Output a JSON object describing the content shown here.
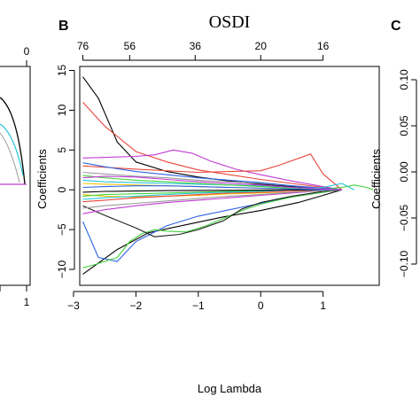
{
  "panels": {
    "B": {
      "label": "B"
    },
    "C": {
      "label": "C"
    }
  },
  "left_fragment": {
    "top_tick_label": "0",
    "bottom_tick_label": "1"
  },
  "chart_data": [
    {
      "panel": "B",
      "type": "line",
      "title": "OSDI",
      "xlabel": "Log Lambda",
      "ylabel": "Coefficients",
      "xlim": [
        -2.9,
        1.9
      ],
      "ylim": [
        -12,
        15.5
      ],
      "x_ticks": [
        -3,
        -2,
        -1,
        0,
        1
      ],
      "x_tick_labels": [
        "−3",
        "−2",
        "−1",
        "0",
        "1"
      ],
      "y_ticks": [
        -10,
        -5,
        0,
        5,
        10,
        15
      ],
      "y_tick_labels": [
        "−10",
        "−5",
        "0",
        "5",
        "10",
        "15"
      ],
      "top_axis": {
        "label": "OSDI",
        "tick_positions": [
          -2.85,
          -2.1,
          -1.05,
          0.0,
          1.0
        ],
        "tick_labels": [
          "76",
          "56",
          "36",
          "20",
          "16"
        ]
      },
      "series": [
        {
          "color": "#000000",
          "x": [
            -2.85,
            -2.6,
            -2.3,
            -2.0,
            -1.5,
            -1.0,
            -0.5,
            0.0,
            0.5,
            1.0,
            1.3
          ],
          "y": [
            14.2,
            11.5,
            6.0,
            3.5,
            2.3,
            1.6,
            1.1,
            0.7,
            0.4,
            0.1,
            0.0
          ]
        },
        {
          "color": "#e8463c",
          "x": [
            -2.85,
            -2.5,
            -2.0,
            -1.5,
            -1.0,
            -0.5,
            0.0,
            0.5,
            1.0,
            1.3
          ],
          "y": [
            11.0,
            8.0,
            4.8,
            3.5,
            2.5,
            1.9,
            1.3,
            0.8,
            0.3,
            0.0
          ]
        },
        {
          "color": "#c23bd4",
          "x": [
            -2.85,
            -2.4,
            -2.0,
            -1.7,
            -1.4,
            -1.1,
            -0.8,
            -0.4,
            0.0,
            0.5,
            1.0,
            1.3
          ],
          "y": [
            4.0,
            4.1,
            4.2,
            4.4,
            5.0,
            4.6,
            3.6,
            2.6,
            1.9,
            1.1,
            0.4,
            0.0
          ]
        },
        {
          "color": "#e8463c",
          "x": [
            -2.85,
            -2.0,
            -1.0,
            0.0,
            0.3,
            0.8,
            1.0,
            1.3
          ],
          "y": [
            3.0,
            2.6,
            2.2,
            2.4,
            3.1,
            4.5,
            2.0,
            0.0
          ]
        },
        {
          "color": "#000000",
          "x": [
            -2.85,
            -2.3,
            -1.8,
            -1.2,
            -0.6,
            0.0,
            0.6,
            1.0,
            1.3
          ],
          "y": [
            -10.6,
            -7.5,
            -5.4,
            -4.4,
            -3.4,
            -2.6,
            -1.6,
            -0.7,
            0.0
          ]
        },
        {
          "color": "#2d63e3",
          "x": [
            -2.85,
            -2.6,
            -2.3,
            -2.0,
            -1.5,
            -1.0,
            -0.5,
            0.0,
            0.5,
            1.0,
            1.3
          ],
          "y": [
            -4.0,
            -8.5,
            -9.0,
            -6.5,
            -4.5,
            -3.3,
            -2.5,
            -1.7,
            -0.9,
            -0.3,
            0.0
          ]
        },
        {
          "color": "#44d13c",
          "x": [
            -2.85,
            -2.7,
            -2.5,
            -2.3,
            -2.1,
            -1.9,
            -1.7,
            -1.5,
            -1.2,
            -0.9,
            -0.6,
            -0.3,
            0.0,
            0.5,
            1.0,
            1.3
          ],
          "y": [
            -9.8,
            -9.5,
            -9.0,
            -8.5,
            -6.5,
            -5.5,
            -5.0,
            -5.2,
            -5.3,
            -4.6,
            -3.6,
            -2.6,
            -1.8,
            -0.9,
            -0.3,
            0.0
          ]
        },
        {
          "color": "#1f1f1f",
          "x": [
            -2.85,
            -2.5,
            -2.0,
            -1.7,
            -1.3,
            -1.0,
            -0.6,
            -0.3,
            0.0,
            0.5,
            1.0,
            1.3
          ],
          "y": [
            -2.0,
            -3.2,
            -4.8,
            -5.9,
            -5.6,
            -5.0,
            -3.9,
            -2.4,
            -1.6,
            -0.8,
            -0.2,
            0.0
          ]
        },
        {
          "color": "#27c3d8",
          "x": [
            -2.85,
            -2.5,
            -2.0,
            -1.5,
            -1.0,
            -0.5,
            0.0,
            0.5,
            1.0,
            1.3
          ],
          "y": [
            1.2,
            1.0,
            0.9,
            0.8,
            0.7,
            0.6,
            0.5,
            0.3,
            0.1,
            0.0
          ]
        },
        {
          "color": "#f2c200",
          "x": [
            -2.85,
            -2.5,
            -2.0,
            -1.5,
            -1.0,
            -0.5,
            0.0,
            0.5,
            1.0,
            1.3
          ],
          "y": [
            -0.6,
            -0.8,
            -0.9,
            -0.8,
            -0.7,
            -0.5,
            -0.4,
            -0.2,
            -0.1,
            0.0
          ]
        },
        {
          "color": "#9a9a9a",
          "x": [
            -2.85,
            -2.5,
            -2.0,
            -1.5,
            -1.0,
            -0.5,
            0.0,
            0.5,
            1.0,
            1.3
          ],
          "y": [
            2.2,
            2.0,
            1.7,
            1.5,
            1.2,
            1.0,
            0.8,
            0.5,
            0.2,
            0.0
          ]
        },
        {
          "color": "#44d13c",
          "x": [
            -2.85,
            -2.5,
            -2.0,
            -1.5,
            -1.0,
            -0.5,
            0.0,
            0.5,
            1.0,
            1.3,
            1.5,
            1.7,
            1.8
          ],
          "y": [
            -0.8,
            -0.6,
            -0.5,
            -0.4,
            -0.3,
            -0.2,
            -0.1,
            0.0,
            0.1,
            0.3,
            0.6,
            0.3,
            0.0
          ]
        },
        {
          "color": "#2d63e3",
          "x": [
            -2.85,
            -2.5,
            -2.0,
            -1.5,
            -1.0,
            -0.5,
            0.0,
            0.5,
            1.0,
            1.3
          ],
          "y": [
            3.4,
            2.9,
            2.3,
            1.9,
            1.5,
            1.2,
            0.9,
            0.5,
            0.2,
            0.0
          ]
        },
        {
          "color": "#c23bd4",
          "x": [
            -2.85,
            -2.5,
            -2.0,
            -1.5,
            -1.0,
            -0.5,
            0.0,
            0.5,
            1.0,
            1.3
          ],
          "y": [
            -3.0,
            -2.5,
            -2.0,
            -1.6,
            -1.3,
            -1.0,
            -0.7,
            -0.4,
            -0.1,
            0.0
          ]
        },
        {
          "color": "#e8463c",
          "x": [
            -2.85,
            -2.5,
            -2.0,
            -1.5,
            -1.0,
            -0.5,
            0.0,
            0.5,
            1.0,
            1.3
          ],
          "y": [
            -1.5,
            -1.3,
            -1.0,
            -0.8,
            -0.6,
            -0.4,
            -0.3,
            -0.2,
            -0.1,
            0.0
          ]
        },
        {
          "color": "#27c3d8",
          "x": [
            -2.85,
            -2.5,
            -2.0,
            -1.5,
            -1.0,
            -0.5,
            0.0,
            0.5,
            1.0,
            1.3,
            1.5
          ],
          "y": [
            -1.2,
            -1.0,
            -0.8,
            -0.6,
            -0.4,
            -0.3,
            -0.2,
            0.0,
            0.3,
            0.8,
            0.0
          ]
        },
        {
          "color": "#f2c200",
          "x": [
            -2.85,
            -2.5,
            -2.0,
            -1.5,
            -1.0,
            -0.5,
            0.0,
            0.5,
            1.0,
            1.3
          ],
          "y": [
            0.8,
            0.7,
            0.6,
            0.5,
            0.4,
            0.3,
            0.2,
            0.1,
            0.05,
            0.0
          ]
        },
        {
          "color": "#000000",
          "x": [
            -2.85,
            -2.5,
            -2.0,
            -1.5,
            -1.0,
            -0.5,
            0.0,
            0.5,
            1.0,
            1.3
          ],
          "y": [
            -0.3,
            -0.2,
            -0.15,
            -0.1,
            -0.08,
            -0.06,
            -0.04,
            -0.02,
            -0.01,
            0.0
          ]
        },
        {
          "color": "#9a9a9a",
          "x": [
            -2.85,
            -2.5,
            -2.0,
            -1.5,
            -1.0,
            -0.5,
            0.0,
            0.5,
            1.0,
            1.3
          ],
          "y": [
            -2.3,
            -2.0,
            -1.7,
            -1.4,
            -1.1,
            -0.8,
            -0.6,
            -0.3,
            -0.1,
            0.0
          ]
        },
        {
          "color": "#44d13c",
          "x": [
            -2.85,
            -2.5,
            -2.0,
            -1.5,
            -1.0,
            -0.5,
            0.0,
            0.5,
            1.0,
            1.3
          ],
          "y": [
            1.8,
            1.5,
            1.2,
            1.0,
            0.8,
            0.6,
            0.4,
            0.2,
            0.1,
            0.0
          ]
        },
        {
          "color": "#2d63e3",
          "x": [
            -2.85,
            -2.5,
            -2.0,
            -1.5,
            -1.0,
            -0.5,
            0.0,
            0.5,
            1.0,
            1.3
          ],
          "y": [
            0.3,
            0.4,
            0.5,
            0.5,
            0.4,
            0.3,
            0.2,
            0.1,
            0.0,
            0.0
          ]
        },
        {
          "color": "#c23bd4",
          "x": [
            -2.85,
            -2.5,
            -2.0,
            -1.5,
            -1.0,
            -0.5,
            0.0,
            0.5,
            1.0,
            1.3
          ],
          "y": [
            1.5,
            1.7,
            1.6,
            1.3,
            1.0,
            0.8,
            0.6,
            0.3,
            0.1,
            0.0
          ]
        }
      ]
    },
    {
      "panel": "C",
      "type": "line",
      "ylabel": "Coefficients",
      "y_ticks": [
        -0.1,
        -0.05,
        0.0,
        0.05,
        0.1
      ],
      "y_tick_labels": [
        "−0.10",
        "−0.05",
        "0.00",
        "0.05",
        "0.10"
      ]
    }
  ]
}
